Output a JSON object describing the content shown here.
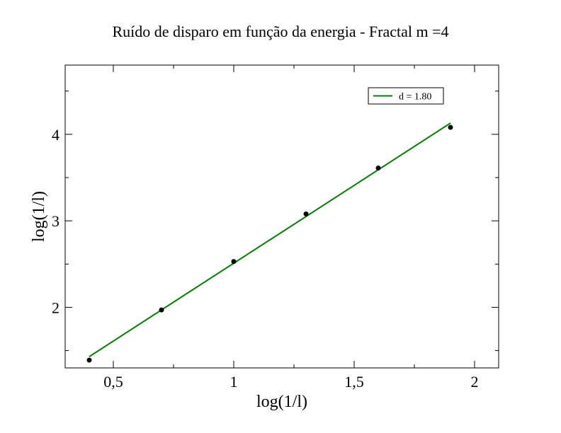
{
  "chart_data": {
    "type": "scatter",
    "title": "Ruído de disparo em função da energia - Fractal m =4",
    "xlabel": "log(1/l)",
    "ylabel": "log(1/l)",
    "xlim": [
      0.3,
      2.1
    ],
    "ylim": [
      1.3,
      4.8
    ],
    "xticks": [
      0.5,
      1,
      1.5,
      2
    ],
    "xtick_labels": [
      "0,5",
      "1",
      "1,5",
      "2"
    ],
    "xminor": [
      0.75,
      1.25,
      1.75
    ],
    "yticks": [
      2,
      3,
      4
    ],
    "ytick_labels": [
      "2",
      "3",
      "4"
    ],
    "yminor": [
      1.5,
      2.5,
      3.5,
      4.5
    ],
    "grid": false,
    "legend_position": "top-right",
    "series": [
      {
        "type": "scatter",
        "color": "#000000",
        "x": [
          0.4,
          0.7,
          1.0,
          1.3,
          1.6,
          1.9
        ],
        "y": [
          1.39,
          1.97,
          2.53,
          3.08,
          3.61,
          4.08
        ]
      },
      {
        "type": "line",
        "name": "d = 1.80",
        "color": "#008000",
        "x": [
          0.4,
          1.9
        ],
        "y": [
          1.43,
          4.13
        ]
      }
    ]
  }
}
